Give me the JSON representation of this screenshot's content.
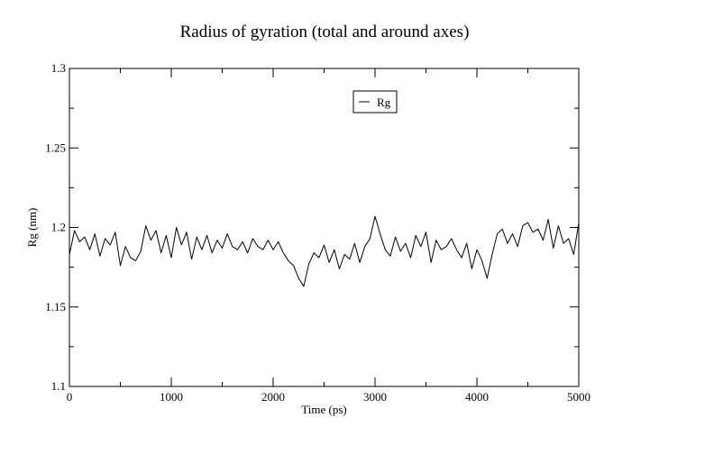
{
  "chart_data": {
    "type": "line",
    "title": "Radius of gyration (total and around axes)",
    "xlabel": "Time (ps)",
    "ylabel": "Rg (nm)",
    "xlim": [
      0,
      5000
    ],
    "ylim": [
      1.1,
      1.3
    ],
    "x_ticks": [
      0,
      1000,
      2000,
      3000,
      4000,
      5000
    ],
    "x_tick_labels": [
      "0",
      "1000",
      "2000",
      "3000",
      "4000",
      "5000"
    ],
    "y_ticks": [
      1.1,
      1.15,
      1.2,
      1.25,
      1.3
    ],
    "y_tick_labels": [
      "1.1",
      "1.15",
      "1.2",
      "1.25",
      "1.3"
    ],
    "grid": false,
    "legend": {
      "position": "top-center",
      "entries": [
        "Rg"
      ]
    },
    "series": [
      {
        "name": "Rg",
        "color": "#000000",
        "x": [
          0,
          50,
          100,
          150,
          200,
          250,
          300,
          350,
          400,
          450,
          500,
          550,
          600,
          650,
          700,
          750,
          800,
          850,
          900,
          950,
          1000,
          1050,
          1100,
          1150,
          1200,
          1250,
          1300,
          1350,
          1400,
          1450,
          1500,
          1550,
          1600,
          1650,
          1700,
          1750,
          1800,
          1850,
          1900,
          1950,
          2000,
          2050,
          2100,
          2150,
          2200,
          2250,
          2300,
          2350,
          2400,
          2450,
          2500,
          2550,
          2600,
          2650,
          2700,
          2750,
          2800,
          2850,
          2900,
          2950,
          3000,
          3050,
          3100,
          3150,
          3200,
          3250,
          3300,
          3350,
          3400,
          3450,
          3500,
          3550,
          3600,
          3650,
          3700,
          3750,
          3800,
          3850,
          3900,
          3950,
          4000,
          4050,
          4100,
          4150,
          4200,
          4250,
          4300,
          4350,
          4400,
          4450,
          4500,
          4550,
          4600,
          4650,
          4700,
          4750,
          4800,
          4850,
          4900,
          4950,
          5000
        ],
        "y": [
          1.183,
          1.198,
          1.191,
          1.194,
          1.186,
          1.196,
          1.182,
          1.193,
          1.189,
          1.197,
          1.176,
          1.188,
          1.181,
          1.179,
          1.185,
          1.201,
          1.192,
          1.198,
          1.184,
          1.195,
          1.181,
          1.2,
          1.189,
          1.197,
          1.18,
          1.194,
          1.186,
          1.195,
          1.184,
          1.192,
          1.187,
          1.196,
          1.188,
          1.186,
          1.191,
          1.184,
          1.193,
          1.188,
          1.186,
          1.192,
          1.186,
          1.191,
          1.184,
          1.179,
          1.176,
          1.168,
          1.163,
          1.177,
          1.184,
          1.181,
          1.189,
          1.178,
          1.186,
          1.174,
          1.183,
          1.18,
          1.19,
          1.178,
          1.188,
          1.193,
          1.207,
          1.196,
          1.186,
          1.182,
          1.194,
          1.185,
          1.19,
          1.181,
          1.195,
          1.188,
          1.197,
          1.178,
          1.192,
          1.186,
          1.188,
          1.193,
          1.186,
          1.181,
          1.19,
          1.174,
          1.186,
          1.179,
          1.168,
          1.183,
          1.196,
          1.199,
          1.19,
          1.196,
          1.188,
          1.201,
          1.203,
          1.197,
          1.199,
          1.192,
          1.205,
          1.187,
          1.201,
          1.19,
          1.193,
          1.183,
          1.203
        ]
      }
    ]
  }
}
